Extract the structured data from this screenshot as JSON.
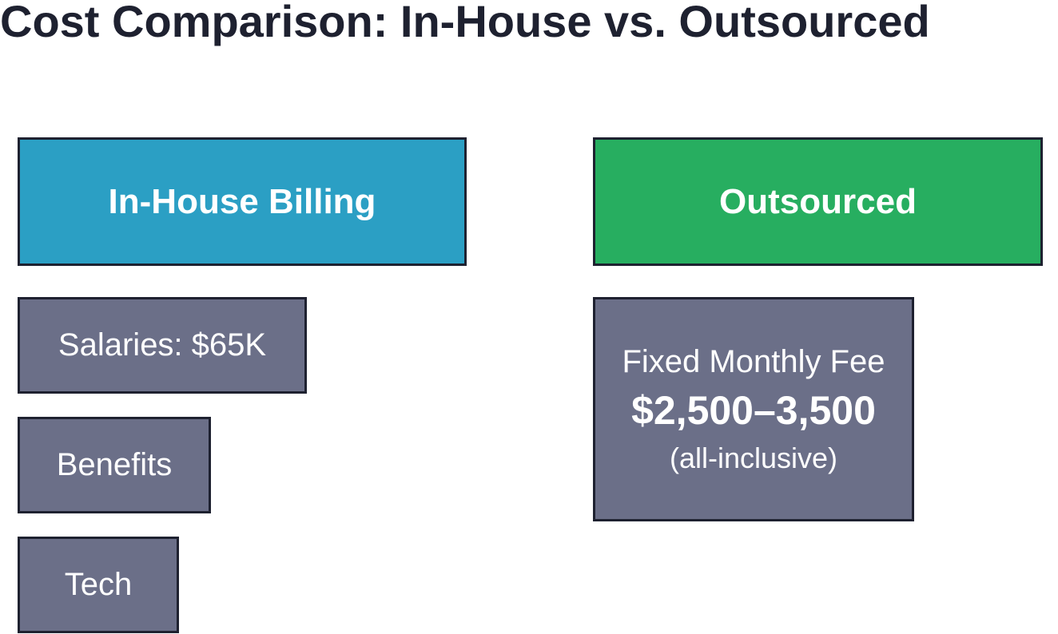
{
  "title": "Cost Comparison: In-House vs. Outsourced",
  "in_house": {
    "header": "In-House Billing",
    "items": [
      "Salaries: $65K",
      "Benefits",
      "Tech"
    ]
  },
  "outsourced": {
    "header": "Outsourced",
    "fee": {
      "label": "Fixed Monthly Fee",
      "amount": "$2,500–3,500",
      "note": "(all-inclusive)"
    }
  }
}
